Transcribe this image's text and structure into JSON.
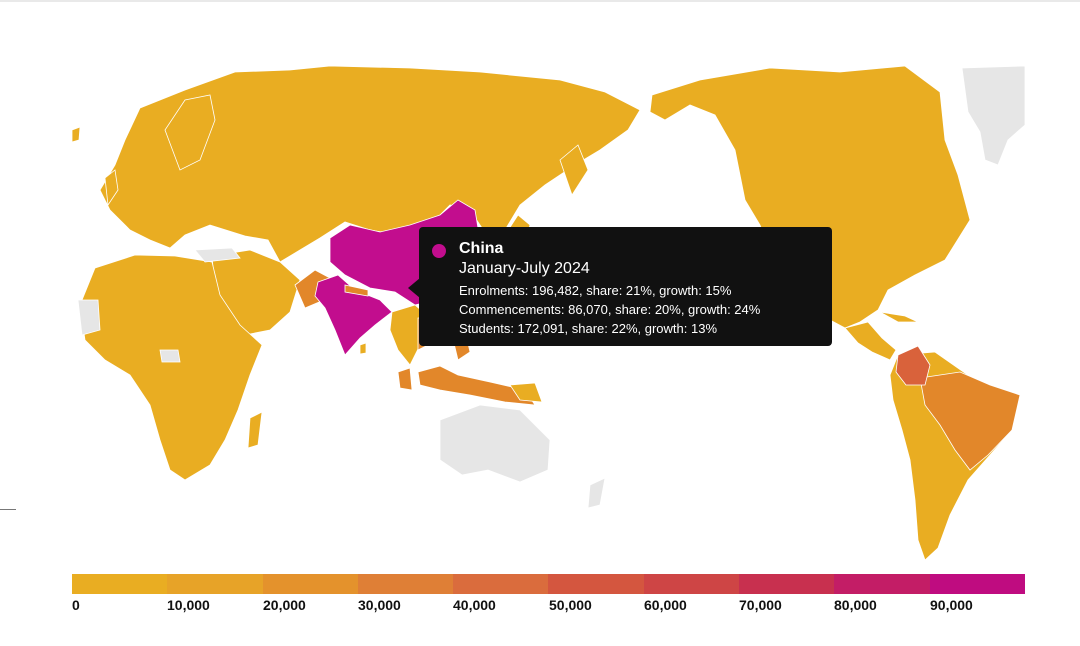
{
  "map": {
    "colors": {
      "base": "#e9ad22",
      "no_data": "#e6e6e6",
      "border": "#ffffff",
      "china": "#c20d8e",
      "india": "#c20d8e",
      "colombia": "#d9623b",
      "brazil": "#e2872a",
      "pakistan": "#e2872a",
      "philippines": "#e2872a",
      "vietnam": "#e2872a",
      "nepal": "#e2872a"
    }
  },
  "tooltip": {
    "country": "China",
    "period": "January-July 2024",
    "enrolments": "Enrolments: 196,482, share: 21%, growth: 15%",
    "commencements": "Commencements: 86,070, share: 20%, growth: 24%",
    "students": "Students: 172,091, share: 22%, growth: 13%",
    "dot_color": "#c20d8e"
  },
  "legend": {
    "colors": [
      "#e9ad22",
      "#e7a328",
      "#e4922c",
      "#df7f36",
      "#da6c3d",
      "#d4563f",
      "#ce4545",
      "#c8304f",
      "#c31d66",
      "#bf0c80"
    ],
    "labels": [
      "0",
      "10,000",
      "20,000",
      "30,000",
      "40,000",
      "50,000",
      "60,000",
      "70,000",
      "80,000",
      "90,000"
    ]
  }
}
